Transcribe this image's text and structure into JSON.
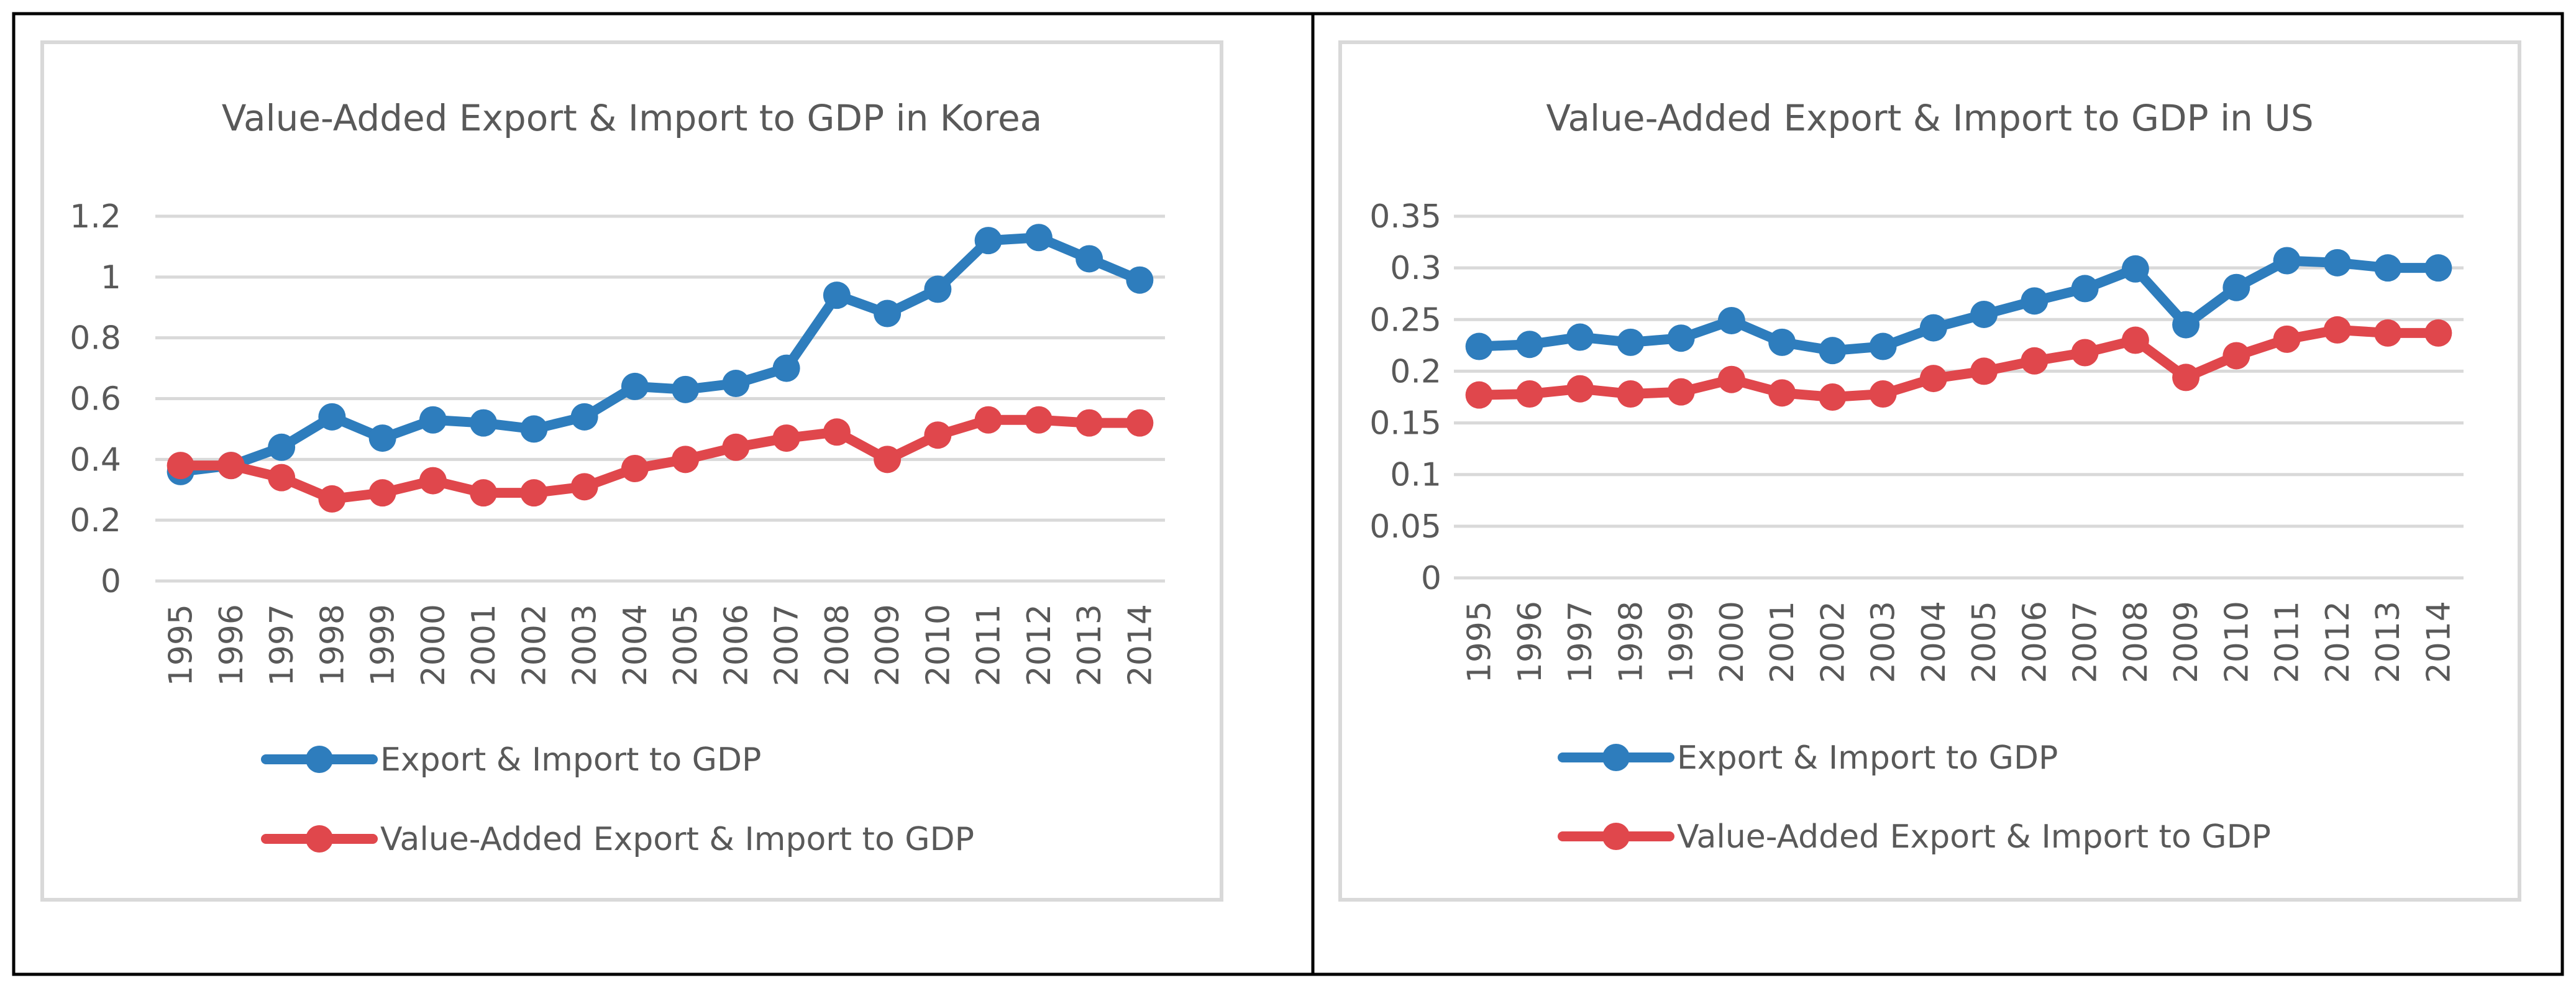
{
  "colors": {
    "export_import": "#2E7DBD",
    "value_added": "#E0474C",
    "gridline": "#D9D9D9",
    "text": "#595959",
    "frame": "#000000",
    "chart_border": "#D9D9D9"
  },
  "chart_data": [
    {
      "type": "line",
      "title": "Value-Added Export & Import to GDP in Korea",
      "xlabel": "",
      "ylabel": "",
      "grid": true,
      "legend": "bottom",
      "ylim": [
        0,
        1.2
      ],
      "yticks": [
        0,
        0.2,
        0.4,
        0.6,
        0.8,
        1,
        1.2
      ],
      "ytick_labels": [
        "0",
        "0.2",
        "0.4",
        "0.6",
        "0.8",
        "1",
        "1.2"
      ],
      "categories": [
        "1995",
        "1996",
        "1997",
        "1998",
        "1999",
        "2000",
        "2001",
        "2002",
        "2003",
        "2004",
        "2005",
        "2006",
        "2007",
        "2008",
        "2009",
        "2010",
        "2011",
        "2012",
        "2013",
        "2014"
      ],
      "series": [
        {
          "name": "Export & Import to GDP",
          "color": "#2E7DBD",
          "values": [
            0.36,
            0.38,
            0.44,
            0.54,
            0.47,
            0.53,
            0.52,
            0.5,
            0.54,
            0.64,
            0.63,
            0.65,
            0.7,
            0.94,
            0.88,
            0.96,
            1.12,
            1.13,
            1.06,
            0.99
          ]
        },
        {
          "name": "Value-Added Export & Import to GDP",
          "color": "#E0474C",
          "values": [
            0.38,
            0.38,
            0.34,
            0.27,
            0.29,
            0.33,
            0.29,
            0.29,
            0.31,
            0.37,
            0.4,
            0.44,
            0.47,
            0.49,
            0.4,
            0.48,
            0.53,
            0.53,
            0.52,
            0.52
          ]
        }
      ]
    },
    {
      "type": "line",
      "title": "Value-Added Export & Import to GDP in US",
      "xlabel": "",
      "ylabel": "",
      "grid": true,
      "legend": "bottom",
      "ylim": [
        0,
        0.35
      ],
      "yticks": [
        0,
        0.05,
        0.1,
        0.15,
        0.2,
        0.25,
        0.3,
        0.35
      ],
      "ytick_labels": [
        "0",
        "0.05",
        "0.1",
        "0.15",
        "0.2",
        "0.25",
        "0.3",
        "0.35"
      ],
      "categories": [
        "1995",
        "1996",
        "1997",
        "1998",
        "1999",
        "2000",
        "2001",
        "2002",
        "2003",
        "2004",
        "2005",
        "2006",
        "2007",
        "2008",
        "2009",
        "2010",
        "2011",
        "2012",
        "2013",
        "2014"
      ],
      "series": [
        {
          "name": "Export & Import to GDP",
          "color": "#2E7DBD",
          "values": [
            0.224,
            0.226,
            0.233,
            0.228,
            0.232,
            0.249,
            0.228,
            0.22,
            0.224,
            0.242,
            0.255,
            0.268,
            0.28,
            0.299,
            0.245,
            0.281,
            0.307,
            0.305,
            0.3,
            0.3
          ]
        },
        {
          "name": "Value-Added Export & Import to GDP",
          "color": "#E0474C",
          "values": [
            0.177,
            0.178,
            0.183,
            0.178,
            0.18,
            0.192,
            0.179,
            0.175,
            0.178,
            0.193,
            0.2,
            0.21,
            0.218,
            0.23,
            0.194,
            0.215,
            0.231,
            0.24,
            0.237,
            0.237
          ]
        }
      ]
    }
  ]
}
